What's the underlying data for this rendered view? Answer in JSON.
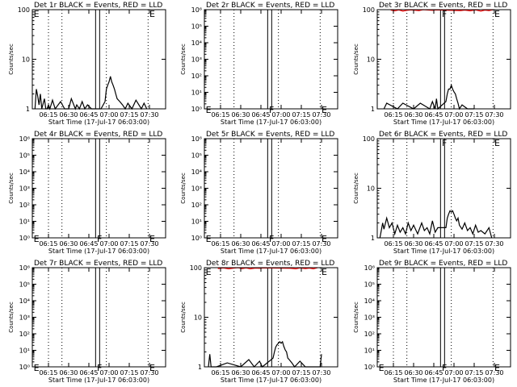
{
  "figure": {
    "panel_titles": [
      "Det 1r BLACK = Events, RED = LLD",
      "Det 2r BLACK = Events, RED = LLD",
      "Det 3r BLACK = Events, RED = LLD",
      "Det 4r BLACK = Events, RED = LLD",
      "Det 5r BLACK = Events, RED = LLD",
      "Det 6r BLACK = Events, RED = LLD",
      "Det 7r BLACK = Events, RED = LLD",
      "Det 8r BLACK = Events, RED = LLD",
      "Det 9r BLACK = Events, RED = LLD"
    ],
    "ylabel": "Counts/sec",
    "xlabel": "Start Time (17-Jul-17 06:03:00)",
    "colors": {
      "events": "#000000",
      "lld": "#ff0000",
      "axes": "#000000"
    }
  },
  "chart_data": [
    {
      "type": "line",
      "title": "Det 1r BLACK = Events, RED = LLD",
      "ylabel": "Counts/sec",
      "xlabel": "Start Time (17-Jul-17 06:03:00)",
      "x_range": [
        "06:03",
        "07:42"
      ],
      "x_ticks": [
        "06:15",
        "06:30",
        "06:45",
        "07:00",
        "07:15",
        "07:30"
      ],
      "y_scale": "log",
      "ylim": [
        1,
        100
      ],
      "y_ticks": [
        1,
        10,
        100
      ],
      "y_tick_labels": [
        "1",
        "10",
        "100"
      ],
      "dotted_lines": [
        "06:15",
        "06:25",
        "06:58",
        "07:29"
      ],
      "solid_lines": [
        "06:50",
        "06:53"
      ],
      "markers": [
        {
          "label": "E",
          "time": "06:04",
          "level": 100
        },
        {
          "label": "E",
          "time": "07:30",
          "level": 100
        }
      ],
      "series": [
        {
          "name": "Events",
          "color": "#000000",
          "x": [
            "06:05",
            "06:06",
            "06:07",
            "06:08",
            "06:09",
            "06:10",
            "06:12",
            "06:13",
            "06:14",
            "06:15",
            "06:16",
            "06:18",
            "06:20",
            "06:24",
            "06:27",
            "06:30",
            "06:32",
            "06:35",
            "06:36",
            "06:38",
            "06:40",
            "06:42",
            "06:44",
            "06:47",
            "06:54",
            "06:57",
            "06:58",
            "06:59",
            "07:00",
            "07:01",
            "07:02",
            "07:03",
            "07:04",
            "07:05",
            "07:06",
            "07:08",
            "07:10",
            "07:12",
            "07:14",
            "07:17",
            "07:20",
            "07:24",
            "07:26",
            "07:28"
          ],
          "y": [
            1,
            2.5,
            1.8,
            1.2,
            2,
            1,
            1.6,
            1,
            1,
            1.2,
            1,
            1.5,
            1,
            1.4,
            1,
            1,
            1.6,
            1,
            1.2,
            1,
            1.4,
            1,
            1.2,
            1,
            1,
            1.4,
            2.5,
            3,
            3.5,
            4.5,
            3.5,
            3,
            2.5,
            2,
            1.6,
            1.4,
            1.2,
            1,
            1.3,
            1,
            1.5,
            1,
            1.3,
            1
          ]
        }
      ]
    },
    {
      "type": "line",
      "title": "Det 2r BLACK = Events, RED = LLD",
      "ylabel": "Counts/sec",
      "xlabel": "Start Time (17-Jul-17 06:03:00)",
      "x_range": [
        "06:03",
        "07:42"
      ],
      "x_ticks": [
        "06:15",
        "06:30",
        "06:45",
        "07:00",
        "07:15",
        "07:30"
      ],
      "y_scale": "log",
      "ylim": [
        1,
        1000000
      ],
      "y_ticks": [
        1,
        10,
        100,
        1000,
        10000,
        100000,
        1000000
      ],
      "y_tick_labels": [
        "10⁰",
        "10¹",
        "10²",
        "10³",
        "10⁴",
        "10⁵",
        "10⁶"
      ],
      "dotted_lines": [
        "06:15",
        "06:25",
        "06:58",
        "07:29"
      ],
      "solid_lines": [
        "06:50",
        "06:53"
      ],
      "markers": [
        {
          "label": "E",
          "time": "06:04",
          "level": 1.6
        },
        {
          "label": "F",
          "time": "06:51",
          "level": 1.6
        },
        {
          "label": "E",
          "time": "07:30",
          "level": 1.6
        }
      ],
      "series": []
    },
    {
      "type": "line",
      "title": "Det 3r BLACK = Events, RED = LLD",
      "ylabel": "Counts/sec",
      "xlabel": "Start Time (17-Jul-17 06:03:00)",
      "x_range": [
        "06:03",
        "07:42"
      ],
      "x_ticks": [
        "06:15",
        "06:30",
        "06:45",
        "07:00",
        "07:15",
        "07:30"
      ],
      "y_scale": "log",
      "ylim": [
        1,
        100
      ],
      "y_ticks": [
        1,
        10,
        100
      ],
      "y_tick_labels": [
        "1",
        "10",
        "100"
      ],
      "dotted_lines": [
        "06:15",
        "06:25",
        "06:58",
        "07:29"
      ],
      "solid_lines": [
        "06:50",
        "06:53"
      ],
      "markers": [
        {
          "label": "F",
          "time": "06:51",
          "level": 100
        },
        {
          "label": "E",
          "time": "07:30",
          "level": 100
        }
      ],
      "series": [
        {
          "name": "Events",
          "color": "#000000",
          "x": [
            "06:08",
            "06:10",
            "06:18",
            "06:22",
            "06:30",
            "06:35",
            "06:42",
            "06:44",
            "06:46",
            "06:47",
            "06:48",
            "06:54",
            "06:55",
            "06:56",
            "06:57",
            "06:58",
            "06:59",
            "07:00",
            "07:01",
            "07:02",
            "07:03",
            "07:04",
            "07:06",
            "07:10",
            "07:15"
          ],
          "y": [
            1,
            1.3,
            1,
            1.3,
            1,
            1.3,
            1,
            1.4,
            1,
            1.6,
            1,
            1.4,
            2,
            2.5,
            2.5,
            3,
            2.5,
            2.2,
            2,
            1.6,
            1.3,
            1,
            1.2,
            1,
            1
          ]
        },
        {
          "name": "LLD",
          "color": "#ff0000",
          "x": [
            "06:13",
            "06:16",
            "06:19",
            "06:22",
            "06:25",
            "06:28",
            "06:34",
            "06:37",
            "06:44",
            "06:47",
            "07:05",
            "07:08",
            "07:12",
            "07:16",
            "07:20",
            "07:23",
            "07:26",
            "07:29"
          ],
          "y": [
            98,
            95,
            99,
            94,
            97,
            99,
            96,
            100,
            97,
            99,
            96,
            98,
            95,
            99,
            94,
            98,
            96,
            100
          ]
        }
      ]
    },
    {
      "type": "line",
      "title": "Det 4r BLACK = Events, RED = LLD",
      "ylabel": "Counts/sec",
      "xlabel": "Start Time (17-Jul-17 06:03:00)",
      "x_range": [
        "06:03",
        "07:42"
      ],
      "x_ticks": [
        "06:15",
        "06:30",
        "06:45",
        "07:00",
        "07:15",
        "07:30"
      ],
      "y_scale": "log",
      "ylim": [
        1,
        1000000
      ],
      "y_ticks": [
        1,
        10,
        100,
        1000,
        10000,
        100000,
        1000000
      ],
      "y_tick_labels": [
        "10⁰",
        "10¹",
        "10²",
        "10³",
        "10⁴",
        "10⁵",
        "10⁶"
      ],
      "dotted_lines": [
        "06:15",
        "06:25",
        "06:58",
        "07:29"
      ],
      "solid_lines": [
        "06:50",
        "06:53"
      ],
      "markers": [
        {
          "label": "E",
          "time": "06:04",
          "level": 1.6
        },
        {
          "label": "F",
          "time": "06:51",
          "level": 1.6
        },
        {
          "label": "E",
          "time": "07:30",
          "level": 1.6
        }
      ],
      "series": []
    },
    {
      "type": "line",
      "title": "Det 5r BLACK = Events, RED = LLD",
      "ylabel": "Counts/sec",
      "xlabel": "Start Time (17-Jul-17 06:03:00)",
      "x_range": [
        "06:03",
        "07:42"
      ],
      "x_ticks": [
        "06:15",
        "06:30",
        "06:45",
        "07:00",
        "07:15",
        "07:30"
      ],
      "y_scale": "log",
      "ylim": [
        1,
        1000000
      ],
      "y_ticks": [
        1,
        10,
        100,
        1000,
        10000,
        100000,
        1000000
      ],
      "y_tick_labels": [
        "10⁰",
        "10¹",
        "10²",
        "10³",
        "10⁴",
        "10⁵",
        "10⁶"
      ],
      "dotted_lines": [
        "06:15",
        "06:25",
        "06:58",
        "07:29"
      ],
      "solid_lines": [
        "06:50",
        "06:53"
      ],
      "markers": [
        {
          "label": "E",
          "time": "06:04",
          "level": 1.6
        },
        {
          "label": "F",
          "time": "06:51",
          "level": 1.6
        },
        {
          "label": "E",
          "time": "07:30",
          "level": 1.6
        }
      ],
      "series": []
    },
    {
      "type": "line",
      "title": "Det 6r BLACK = Events, RED = LLD",
      "ylabel": "Counts/sec",
      "xlabel": "Start Time (17-Jul-17 06:03:00)",
      "x_range": [
        "06:03",
        "07:42"
      ],
      "x_ticks": [
        "06:15",
        "06:30",
        "06:45",
        "07:00",
        "07:15",
        "07:30"
      ],
      "y_scale": "log",
      "ylim": [
        1,
        100
      ],
      "y_ticks": [
        1,
        10,
        100
      ],
      "y_tick_labels": [
        "1",
        "10",
        "100"
      ],
      "dotted_lines": [
        "06:15",
        "06:25",
        "06:58",
        "07:29"
      ],
      "solid_lines": [
        "06:50",
        "06:53"
      ],
      "markers": [
        {
          "label": "F",
          "time": "06:51",
          "level": 100
        },
        {
          "label": "E",
          "time": "07:30",
          "level": 100
        }
      ],
      "series": [
        {
          "name": "Events",
          "color": "#000000",
          "x": [
            "06:05",
            "06:06",
            "06:07",
            "06:08",
            "06:10",
            "06:12",
            "06:14",
            "06:16",
            "06:18",
            "06:20",
            "06:22",
            "06:24",
            "06:26",
            "06:28",
            "06:30",
            "06:33",
            "06:36",
            "06:38",
            "06:40",
            "06:42",
            "06:44",
            "06:46",
            "06:48",
            "06:54",
            "06:55",
            "06:56",
            "06:57",
            "06:58",
            "06:59",
            "07:00",
            "07:01",
            "07:02",
            "07:03",
            "07:04",
            "07:06",
            "07:08",
            "07:10",
            "07:12",
            "07:14",
            "07:16",
            "07:18",
            "07:20",
            "07:23",
            "07:26",
            "07:28"
          ],
          "y": [
            1,
            1.4,
            2,
            1.5,
            2.5,
            1.6,
            2,
            1.2,
            1.8,
            1.3,
            1.6,
            1.2,
            2,
            1.4,
            1.8,
            1.2,
            2,
            1.4,
            1.6,
            1.2,
            2.2,
            1.3,
            1.6,
            1.6,
            2.5,
            3,
            3.5,
            3.3,
            3.5,
            3,
            2.5,
            2.2,
            2.5,
            1.8,
            1.5,
            2,
            1.4,
            1.6,
            1.2,
            1.8,
            1.3,
            1.4,
            1.2,
            1.6,
            1
          ]
        }
      ]
    },
    {
      "type": "line",
      "title": "Det 7r BLACK = Events, RED = LLD",
      "ylabel": "Counts/sec",
      "xlabel": "Start Time (17-Jul-17 06:03:00)",
      "x_range": [
        "06:03",
        "07:42"
      ],
      "x_ticks": [
        "06:15",
        "06:30",
        "06:45",
        "07:00",
        "07:15",
        "07:30"
      ],
      "y_scale": "log",
      "ylim": [
        1,
        1000000
      ],
      "y_ticks": [
        1,
        10,
        100,
        1000,
        10000,
        100000,
        1000000
      ],
      "y_tick_labels": [
        "10⁰",
        "10¹",
        "10²",
        "10³",
        "10⁴",
        "10⁵",
        "10⁶"
      ],
      "dotted_lines": [
        "06:15",
        "06:25",
        "06:58",
        "07:29"
      ],
      "solid_lines": [
        "06:50",
        "06:53"
      ],
      "markers": [
        {
          "label": "E",
          "time": "06:04",
          "level": 1.6
        },
        {
          "label": "F",
          "time": "06:51",
          "level": 1.6
        },
        {
          "label": "E",
          "time": "07:30",
          "level": 1.6
        }
      ],
      "series": []
    },
    {
      "type": "line",
      "title": "Det 8r BLACK = Events, RED = LLD",
      "ylabel": "Counts/sec",
      "xlabel": "Start Time (17-Jul-17 06:03:00)",
      "x_range": [
        "06:03",
        "07:42"
      ],
      "x_ticks": [
        "06:15",
        "06:30",
        "06:45",
        "07:00",
        "07:15",
        "07:30"
      ],
      "y_scale": "log",
      "ylim": [
        1,
        100
      ],
      "y_ticks": [
        1,
        10,
        100
      ],
      "y_tick_labels": [
        "1",
        "10",
        "100"
      ],
      "dotted_lines": [
        "06:15",
        "06:25",
        "06:58",
        "07:29"
      ],
      "solid_lines": [
        "06:50",
        "06:53"
      ],
      "markers": [
        {
          "label": "E",
          "time": "06:04",
          "level": 100
        },
        {
          "label": "E",
          "time": "07:30",
          "level": 100
        }
      ],
      "series": [
        {
          "name": "Events",
          "color": "#000000",
          "x": [
            "06:06",
            "06:07",
            "06:08",
            "06:12",
            "06:20",
            "06:30",
            "06:36",
            "06:40",
            "06:44",
            "06:46",
            "06:54",
            "06:55",
            "06:56",
            "06:57",
            "06:58",
            "06:59",
            "07:00",
            "07:01",
            "07:02",
            "07:03",
            "07:04",
            "07:05",
            "07:06",
            "07:08",
            "07:10",
            "07:14",
            "07:18",
            "07:24",
            "07:29",
            "07:30"
          ],
          "y": [
            1,
            1.8,
            1,
            1,
            1.2,
            1,
            1.4,
            1,
            1.3,
            1,
            1.5,
            2,
            2.5,
            2.8,
            3,
            3.2,
            3,
            3.2,
            2.6,
            2.2,
            2,
            1.5,
            1.4,
            1.2,
            1,
            1.3,
            1,
            1,
            1,
            1.8
          ]
        },
        {
          "name": "LLD",
          "color": "#ff0000",
          "x": [
            "06:13",
            "06:17",
            "06:21",
            "06:25",
            "06:28",
            "06:31",
            "06:34",
            "06:37",
            "06:41",
            "06:44",
            "06:47",
            "07:07",
            "07:11",
            "07:14",
            "07:18",
            "07:21",
            "07:24",
            "07:27"
          ],
          "y": [
            96,
            99,
            95,
            98,
            100,
            96,
            99,
            95,
            98,
            97,
            99,
            97,
            95,
            99,
            96,
            98,
            95,
            100
          ]
        }
      ]
    },
    {
      "type": "line",
      "title": "Det 9r BLACK = Events, RED = LLD",
      "ylabel": "Counts/sec",
      "xlabel": "Start Time (17-Jul-17 06:03:00)",
      "x_range": [
        "06:03",
        "07:42"
      ],
      "x_ticks": [
        "06:15",
        "06:30",
        "06:45",
        "07:00",
        "07:15",
        "07:30"
      ],
      "y_scale": "log",
      "ylim": [
        1,
        1000000
      ],
      "y_ticks": [
        1,
        10,
        100,
        1000,
        10000,
        100000,
        1000000
      ],
      "y_tick_labels": [
        "10⁰",
        "10¹",
        "10²",
        "10³",
        "10⁴",
        "10⁵",
        "10⁶"
      ],
      "dotted_lines": [
        "06:15",
        "06:25",
        "06:58",
        "07:29"
      ],
      "solid_lines": [
        "06:50",
        "06:53"
      ],
      "markers": [
        {
          "label": "E",
          "time": "06:04",
          "level": 1.6
        },
        {
          "label": "F",
          "time": "06:51",
          "level": 1.6
        },
        {
          "label": "E",
          "time": "07:30",
          "level": 1.6
        }
      ],
      "series": []
    }
  ]
}
